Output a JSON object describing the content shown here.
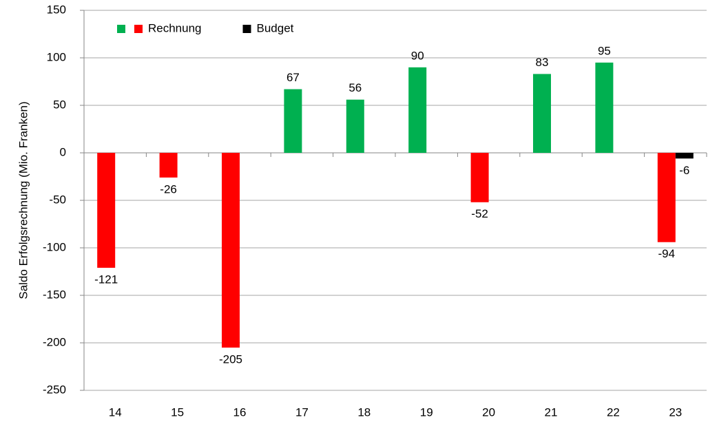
{
  "chart_data": {
    "type": "bar",
    "y_label": "Saldo Erfolgsrechnung (Mio. Franken)",
    "categories": [
      "14",
      "15",
      "16",
      "17",
      "18",
      "19",
      "20",
      "21",
      "22",
      "23"
    ],
    "series": [
      {
        "name": "Rechnung",
        "color": "#00b050",
        "negative_color": "#ff0000",
        "values": [
          -121,
          -26,
          -205,
          67,
          56,
          90,
          -52,
          83,
          95,
          -94
        ]
      },
      {
        "name": "Budget",
        "color": "#000000",
        "values": [
          null,
          null,
          null,
          null,
          null,
          null,
          null,
          null,
          null,
          -6
        ]
      }
    ],
    "ylim": [
      -250,
      150
    ],
    "yticks": [
      -250,
      -200,
      -150,
      -100,
      -50,
      0,
      50,
      100,
      150
    ],
    "grid": true,
    "legend": "top-left"
  }
}
